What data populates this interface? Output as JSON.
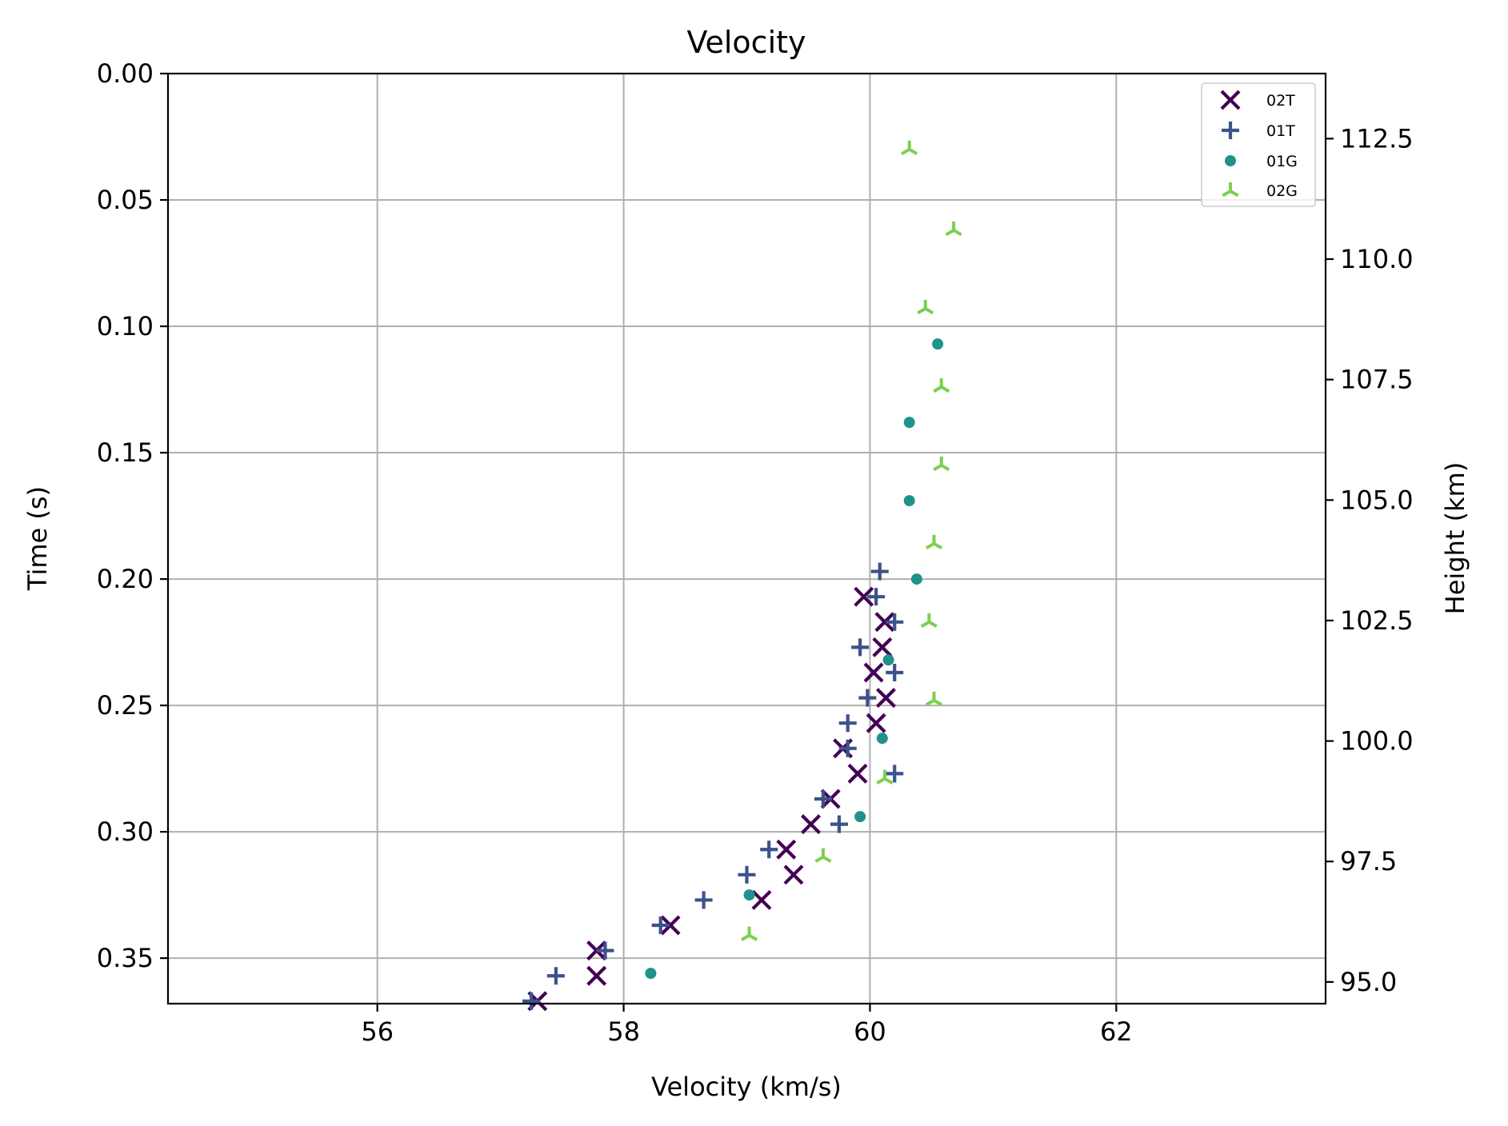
{
  "chart_data": {
    "type": "scatter",
    "title": "Velocity",
    "xlabel": "Velocity (km/s)",
    "ylabel": "Time (s)",
    "y2label": "Height (km)",
    "xlim": [
      54.3,
      63.7
    ],
    "ylim": [
      0.368,
      0.0
    ],
    "y2lim": [
      94.55,
      113.85
    ],
    "xticks": [
      "56",
      "58",
      "60",
      "62"
    ],
    "yticks": [
      "0.00",
      "0.05",
      "0.10",
      "0.15",
      "0.20",
      "0.25",
      "0.30",
      "0.35"
    ],
    "y2ticks": [
      "95.0",
      "97.5",
      "100.0",
      "102.5",
      "105.0",
      "107.5",
      "110.0",
      "112.5"
    ],
    "grid": true,
    "legend_position": "top-right",
    "series": [
      {
        "name": "02T",
        "marker": "x",
        "color": "#440154",
        "points": [
          [
            59.95,
            0.207
          ],
          [
            60.12,
            0.217
          ],
          [
            60.1,
            0.227
          ],
          [
            60.03,
            0.237
          ],
          [
            60.13,
            0.247
          ],
          [
            60.05,
            0.257
          ],
          [
            59.78,
            0.267
          ],
          [
            59.9,
            0.277
          ],
          [
            59.68,
            0.287
          ],
          [
            59.52,
            0.297
          ],
          [
            59.32,
            0.307
          ],
          [
            59.38,
            0.317
          ],
          [
            59.12,
            0.327
          ],
          [
            58.38,
            0.337
          ],
          [
            57.78,
            0.347
          ],
          [
            57.78,
            0.357
          ],
          [
            57.3,
            0.367
          ]
        ]
      },
      {
        "name": "01T",
        "marker": "+",
        "color": "#3b528b",
        "points": [
          [
            60.08,
            0.197
          ],
          [
            60.05,
            0.207
          ],
          [
            60.2,
            0.217
          ],
          [
            59.92,
            0.227
          ],
          [
            60.2,
            0.237
          ],
          [
            59.98,
            0.247
          ],
          [
            59.82,
            0.257
          ],
          [
            59.82,
            0.267
          ],
          [
            60.2,
            0.277
          ],
          [
            59.62,
            0.287
          ],
          [
            59.75,
            0.297
          ],
          [
            59.18,
            0.307
          ],
          [
            59.0,
            0.317
          ],
          [
            58.65,
            0.327
          ],
          [
            58.3,
            0.337
          ],
          [
            57.85,
            0.347
          ],
          [
            57.45,
            0.357
          ],
          [
            57.25,
            0.367
          ]
        ]
      },
      {
        "name": "01G",
        "marker": "o",
        "color": "#21918c",
        "points": [
          [
            60.55,
            0.107
          ],
          [
            60.32,
            0.138
          ],
          [
            60.32,
            0.169
          ],
          [
            60.38,
            0.2
          ],
          [
            60.15,
            0.232
          ],
          [
            60.1,
            0.263
          ],
          [
            59.92,
            0.294
          ],
          [
            59.02,
            0.325
          ],
          [
            58.22,
            0.356
          ]
        ]
      },
      {
        "name": "02G",
        "marker": "tri_down",
        "color": "#7ad151",
        "points": [
          [
            60.32,
            0.03
          ],
          [
            60.68,
            0.062
          ],
          [
            60.45,
            0.093
          ],
          [
            60.58,
            0.124
          ],
          [
            60.58,
            0.155
          ],
          [
            60.52,
            0.186
          ],
          [
            60.48,
            0.217
          ],
          [
            60.52,
            0.248
          ],
          [
            60.12,
            0.279
          ],
          [
            59.62,
            0.31
          ],
          [
            59.02,
            0.341
          ]
        ]
      }
    ]
  }
}
